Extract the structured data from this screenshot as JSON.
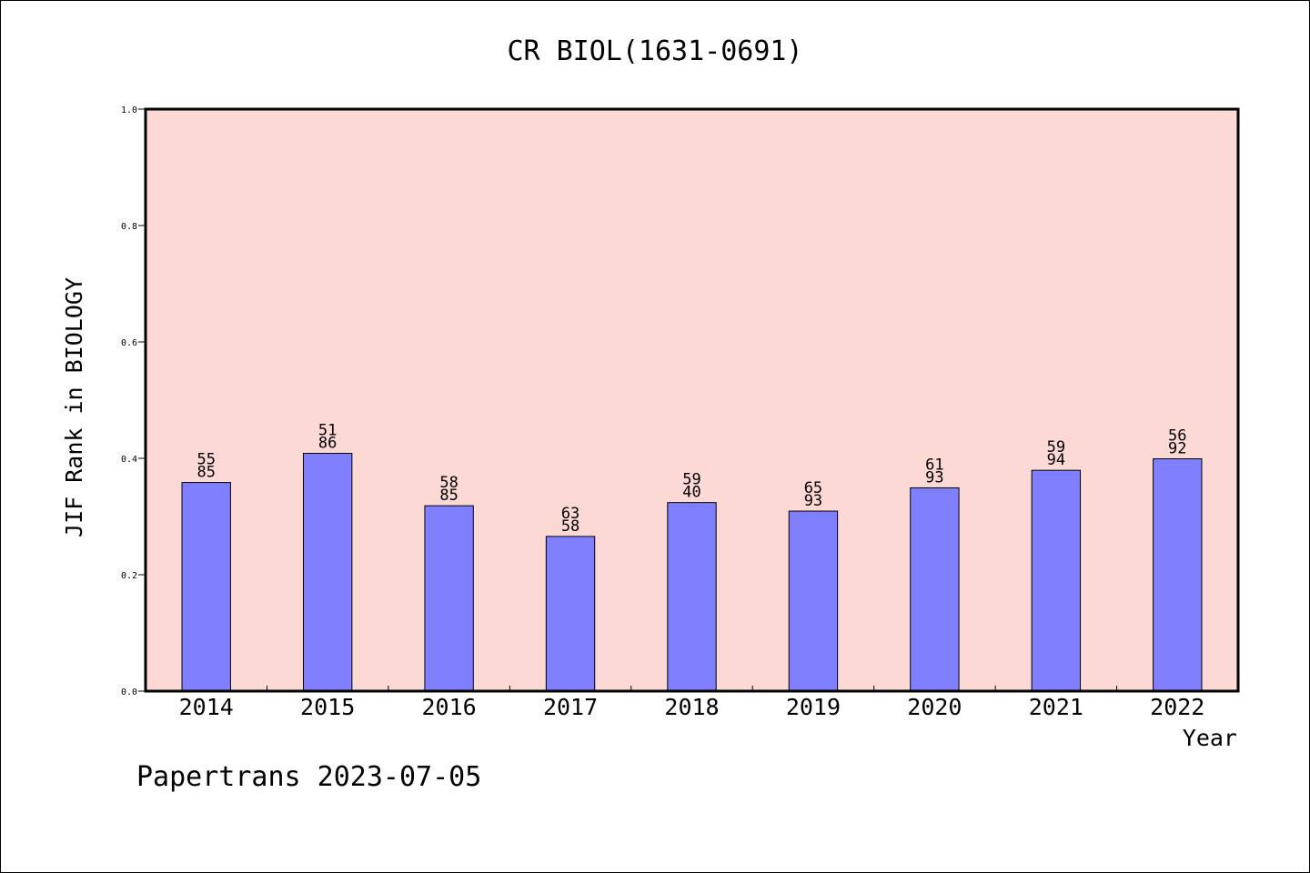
{
  "chart_data": {
    "type": "bar",
    "title": "CR BIOL(1631-0691)",
    "xlabel": "Year",
    "ylabel": "JIF Rank in BIOLOGY",
    "ylim": [
      0,
      1.0
    ],
    "yticks": [
      "0.0",
      "0.2",
      "0.4",
      "0.6",
      "0.8",
      "1.0"
    ],
    "categories": [
      "2014",
      "2015",
      "2016",
      "2017",
      "2018",
      "2019",
      "2020",
      "2021",
      "2022"
    ],
    "values": [
      0.3585,
      0.4086,
      0.3185,
      0.2658,
      0.324,
      0.3093,
      0.3493,
      0.3794,
      0.3992
    ],
    "bar_labels": [
      [
        "55",
        "85"
      ],
      [
        "51",
        "86"
      ],
      [
        "58",
        "85"
      ],
      [
        "63",
        "58"
      ],
      [
        "59",
        "40"
      ],
      [
        "65",
        "93"
      ],
      [
        "61",
        "93"
      ],
      [
        "59",
        "94"
      ],
      [
        "56",
        "92"
      ]
    ],
    "grid": false,
    "colors": {
      "plot_background": "#fdd9d6",
      "bar_fill": "#8080ff",
      "bar_stroke": "#000000"
    }
  },
  "footer": {
    "text": "Papertrans 2023-07-05"
  }
}
